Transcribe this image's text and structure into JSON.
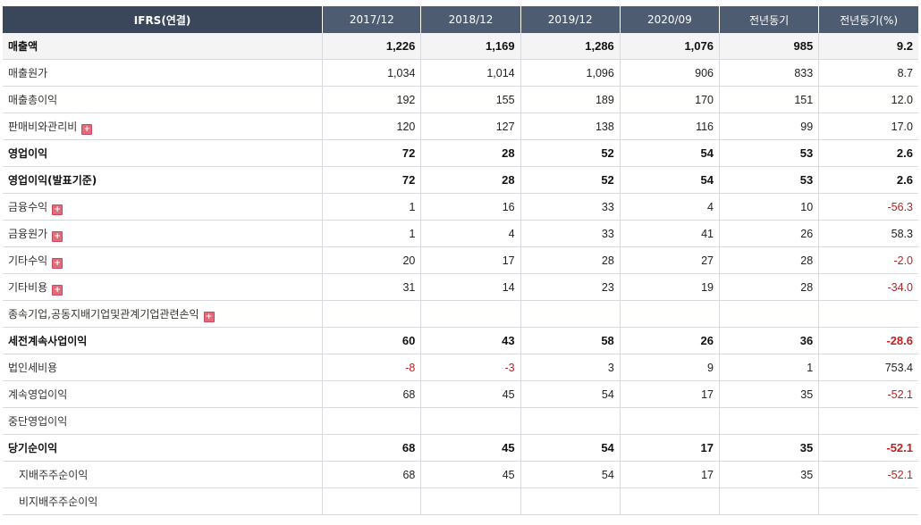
{
  "header": [
    "IFRS(연결)",
    "2017/12",
    "2018/12",
    "2019/12",
    "2020/09",
    "전년동기",
    "전년동기(%)"
  ],
  "rows": [
    {
      "label": "매출액",
      "values": [
        "1,226",
        "1,169",
        "1,286",
        "1,076",
        "985",
        "9.2"
      ],
      "bold": true,
      "expand": false,
      "sub": false
    },
    {
      "label": "매출원가",
      "values": [
        "1,034",
        "1,014",
        "1,096",
        "906",
        "833",
        "8.7"
      ],
      "bold": false,
      "expand": false,
      "sub": false
    },
    {
      "label": "매출총이익",
      "values": [
        "192",
        "155",
        "189",
        "170",
        "151",
        "12.0"
      ],
      "bold": false,
      "expand": false,
      "sub": false
    },
    {
      "label": "판매비와관리비",
      "values": [
        "120",
        "127",
        "138",
        "116",
        "99",
        "17.0"
      ],
      "bold": false,
      "expand": true,
      "sub": false
    },
    {
      "label": "영업이익",
      "values": [
        "72",
        "28",
        "52",
        "54",
        "53",
        "2.6"
      ],
      "bold": true,
      "expand": false,
      "sub": false
    },
    {
      "label": "영업이익(발표기준)",
      "values": [
        "72",
        "28",
        "52",
        "54",
        "53",
        "2.6"
      ],
      "bold": true,
      "expand": false,
      "sub": false
    },
    {
      "label": "금융수익",
      "values": [
        "1",
        "16",
        "33",
        "4",
        "10",
        "-56.3"
      ],
      "bold": false,
      "expand": true,
      "sub": false
    },
    {
      "label": "금융원가",
      "values": [
        "1",
        "4",
        "33",
        "41",
        "26",
        "58.3"
      ],
      "bold": false,
      "expand": true,
      "sub": false
    },
    {
      "label": "기타수익",
      "values": [
        "20",
        "17",
        "28",
        "27",
        "28",
        "-2.0"
      ],
      "bold": false,
      "expand": true,
      "sub": false
    },
    {
      "label": "기타비용",
      "values": [
        "31",
        "14",
        "23",
        "19",
        "28",
        "-34.0"
      ],
      "bold": false,
      "expand": true,
      "sub": false
    },
    {
      "label": "종속기업,공동지배기업및관계기업관련손익",
      "values": [
        "",
        "",
        "",
        "",
        "",
        ""
      ],
      "bold": false,
      "expand": true,
      "sub": false
    },
    {
      "label": "세전계속사업이익",
      "values": [
        "60",
        "43",
        "58",
        "26",
        "36",
        "-28.6"
      ],
      "bold": true,
      "expand": false,
      "sub": false
    },
    {
      "label": "법인세비용",
      "values": [
        "-8",
        "-3",
        "3",
        "9",
        "1",
        "753.4"
      ],
      "bold": false,
      "expand": false,
      "sub": false
    },
    {
      "label": "계속영업이익",
      "values": [
        "68",
        "45",
        "54",
        "17",
        "35",
        "-52.1"
      ],
      "bold": false,
      "expand": false,
      "sub": false
    },
    {
      "label": "중단영업이익",
      "values": [
        "",
        "",
        "",
        "",
        "",
        ""
      ],
      "bold": false,
      "expand": false,
      "sub": false
    },
    {
      "label": "당기순이익",
      "values": [
        "68",
        "45",
        "54",
        "17",
        "35",
        "-52.1"
      ],
      "bold": true,
      "expand": false,
      "sub": false
    },
    {
      "label": "지배주주순이익",
      "values": [
        "68",
        "45",
        "54",
        "17",
        "35",
        "-52.1"
      ],
      "bold": false,
      "expand": false,
      "sub": true
    },
    {
      "label": "비지배주주순이익",
      "values": [
        "",
        "",
        "",
        "",
        "",
        ""
      ],
      "bold": false,
      "expand": false,
      "sub": true
    }
  ],
  "expand_icon": "plus-icon",
  "colors": {
    "header_bg": "#4d5c71",
    "header_first_bg": "#3a475a",
    "negative": "#c11e1e",
    "expand_icon": "#e26a7a"
  }
}
